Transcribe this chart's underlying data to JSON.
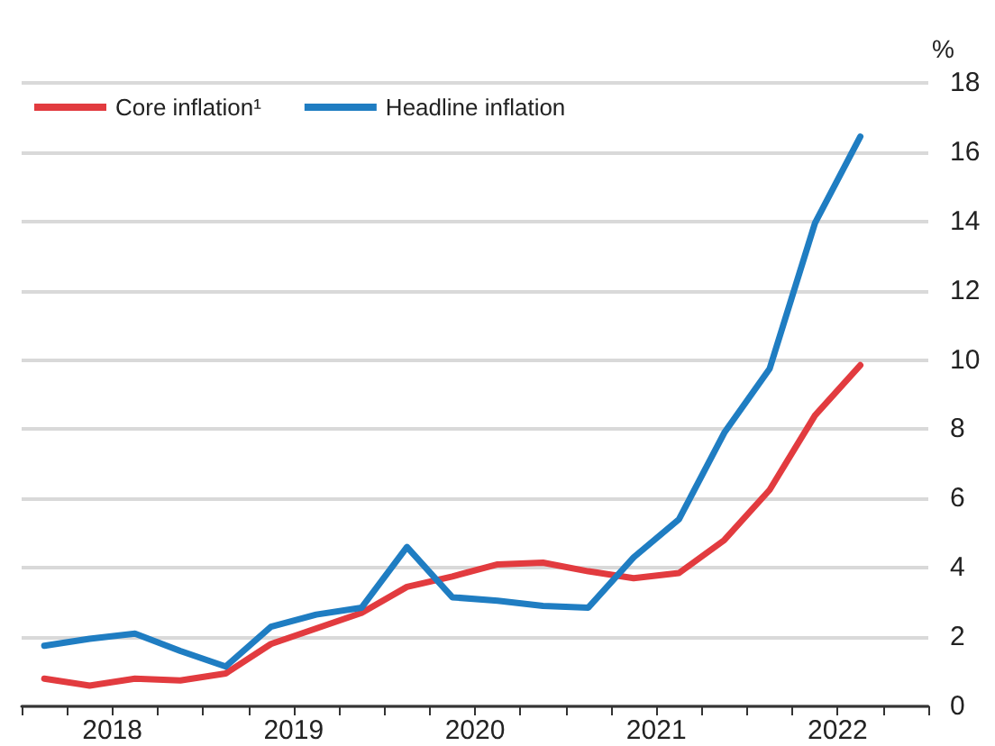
{
  "chart_data": {
    "type": "line",
    "ylabel": "%",
    "x": [
      2018.125,
      2018.375,
      2018.625,
      2018.875,
      2019.125,
      2019.375,
      2019.625,
      2019.875,
      2020.125,
      2020.375,
      2020.625,
      2020.875,
      2021.125,
      2021.375,
      2021.625,
      2021.875,
      2022.125,
      2022.375,
      2022.625
    ],
    "series": [
      {
        "name": "Core inflation¹",
        "color": "#e23b3f",
        "values": [
          0.8,
          0.6,
          0.8,
          0.75,
          0.95,
          1.8,
          2.25,
          2.7,
          3.45,
          3.75,
          4.1,
          4.15,
          3.9,
          3.7,
          3.85,
          4.8,
          6.25,
          8.4,
          9.85
        ]
      },
      {
        "name": "Headline inflation",
        "color": "#1f7dc2",
        "values": [
          1.75,
          1.95,
          2.1,
          1.6,
          1.15,
          2.3,
          2.65,
          2.85,
          4.6,
          3.15,
          3.05,
          2.9,
          2.85,
          4.3,
          5.4,
          7.9,
          9.75,
          13.95,
          16.45
        ]
      }
    ],
    "xlim": [
      2018,
      2023
    ],
    "xticks": [
      {
        "value": 2018,
        "label": null
      },
      {
        "value": 2018.25,
        "label": null
      },
      {
        "value": 2018.5,
        "label": "2018"
      },
      {
        "value": 2018.75,
        "label": null
      },
      {
        "value": 2019,
        "label": null
      },
      {
        "value": 2019.25,
        "label": null
      },
      {
        "value": 2019.5,
        "label": "2019"
      },
      {
        "value": 2019.75,
        "label": null
      },
      {
        "value": 2020,
        "label": null
      },
      {
        "value": 2020.25,
        "label": null
      },
      {
        "value": 2020.5,
        "label": "2020"
      },
      {
        "value": 2020.75,
        "label": null
      },
      {
        "value": 2021,
        "label": null
      },
      {
        "value": 2021.25,
        "label": null
      },
      {
        "value": 2021.5,
        "label": "2021"
      },
      {
        "value": 2021.75,
        "label": null
      },
      {
        "value": 2022,
        "label": null
      },
      {
        "value": 2022.25,
        "label": null
      },
      {
        "value": 2022.5,
        "label": "2022"
      },
      {
        "value": 2022.75,
        "label": null
      },
      {
        "value": 2023,
        "label": null
      }
    ],
    "ylim": [
      0,
      18
    ],
    "yticks": [
      0,
      2,
      4,
      6,
      8,
      10,
      12,
      14,
      16,
      18
    ],
    "grid": "y",
    "legend": "top left",
    "marker": "none",
    "line_style": "solid"
  }
}
